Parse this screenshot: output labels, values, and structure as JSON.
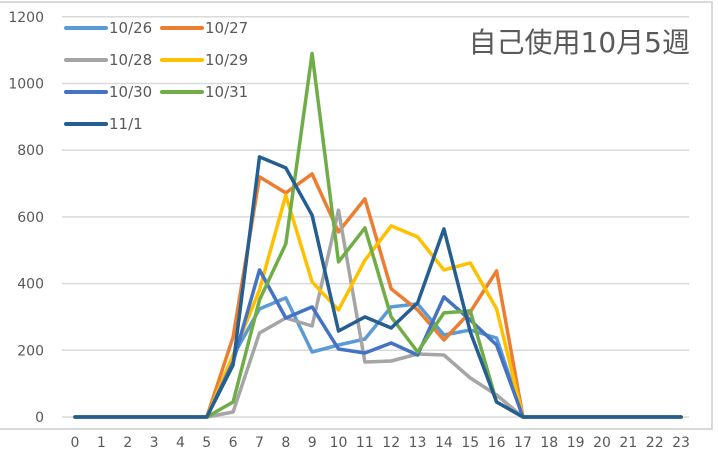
{
  "chart_data": {
    "type": "line",
    "title": "自己使用10月5週",
    "xlabel": "",
    "ylabel": "",
    "ylim": [
      0,
      1200
    ],
    "yticks": [
      0,
      200,
      400,
      600,
      800,
      1000,
      1200
    ],
    "grid": true,
    "legend_position": "top-left",
    "x": [
      0,
      1,
      2,
      3,
      4,
      5,
      6,
      7,
      8,
      9,
      10,
      11,
      12,
      13,
      14,
      15,
      16,
      17,
      18,
      19,
      20,
      21,
      22,
      23
    ],
    "series": [
      {
        "name": "10/26",
        "color": "#5b9bd5",
        "values": [
          0,
          0,
          0,
          0,
          0,
          0,
          183,
          324,
          357,
          195,
          216,
          234,
          330,
          339,
          246,
          261,
          237,
          0,
          0,
          0,
          0,
          0,
          0,
          0
        ]
      },
      {
        "name": "10/27",
        "color": "#ed7d31",
        "values": [
          0,
          0,
          0,
          0,
          0,
          0,
          240,
          720,
          672,
          729,
          555,
          654,
          384,
          321,
          231,
          315,
          438,
          0,
          0,
          0,
          0,
          0,
          0,
          0
        ]
      },
      {
        "name": "10/28",
        "color": "#a5a5a5",
        "values": [
          0,
          0,
          0,
          0,
          0,
          0,
          15,
          252,
          297,
          273,
          620,
          165,
          168,
          189,
          186,
          117,
          66,
          0,
          0,
          0,
          0,
          0,
          0,
          0
        ]
      },
      {
        "name": "10/29",
        "color": "#ffc000",
        "values": [
          0,
          0,
          0,
          0,
          0,
          0,
          186,
          381,
          665,
          405,
          321,
          470,
          573,
          540,
          441,
          462,
          324,
          0,
          0,
          0,
          0,
          0,
          0,
          0
        ]
      },
      {
        "name": "10/30",
        "color": "#4472c4",
        "values": [
          0,
          0,
          0,
          0,
          0,
          0,
          165,
          441,
          297,
          330,
          204,
          192,
          222,
          186,
          360,
          291,
          216,
          0,
          0,
          0,
          0,
          0,
          0,
          0
        ]
      },
      {
        "name": "10/31",
        "color": "#70ad47",
        "values": [
          0,
          0,
          0,
          0,
          0,
          0,
          45,
          351,
          519,
          1090,
          465,
          567,
          300,
          195,
          312,
          318,
          45,
          0,
          0,
          0,
          0,
          0,
          0,
          0
        ]
      },
      {
        "name": "11/1",
        "color": "#255e91",
        "values": [
          0,
          0,
          0,
          0,
          0,
          0,
          156,
          780,
          747,
          605,
          258,
          300,
          267,
          342,
          564,
          255,
          45,
          0,
          0,
          0,
          0,
          0,
          0,
          0
        ]
      }
    ]
  }
}
